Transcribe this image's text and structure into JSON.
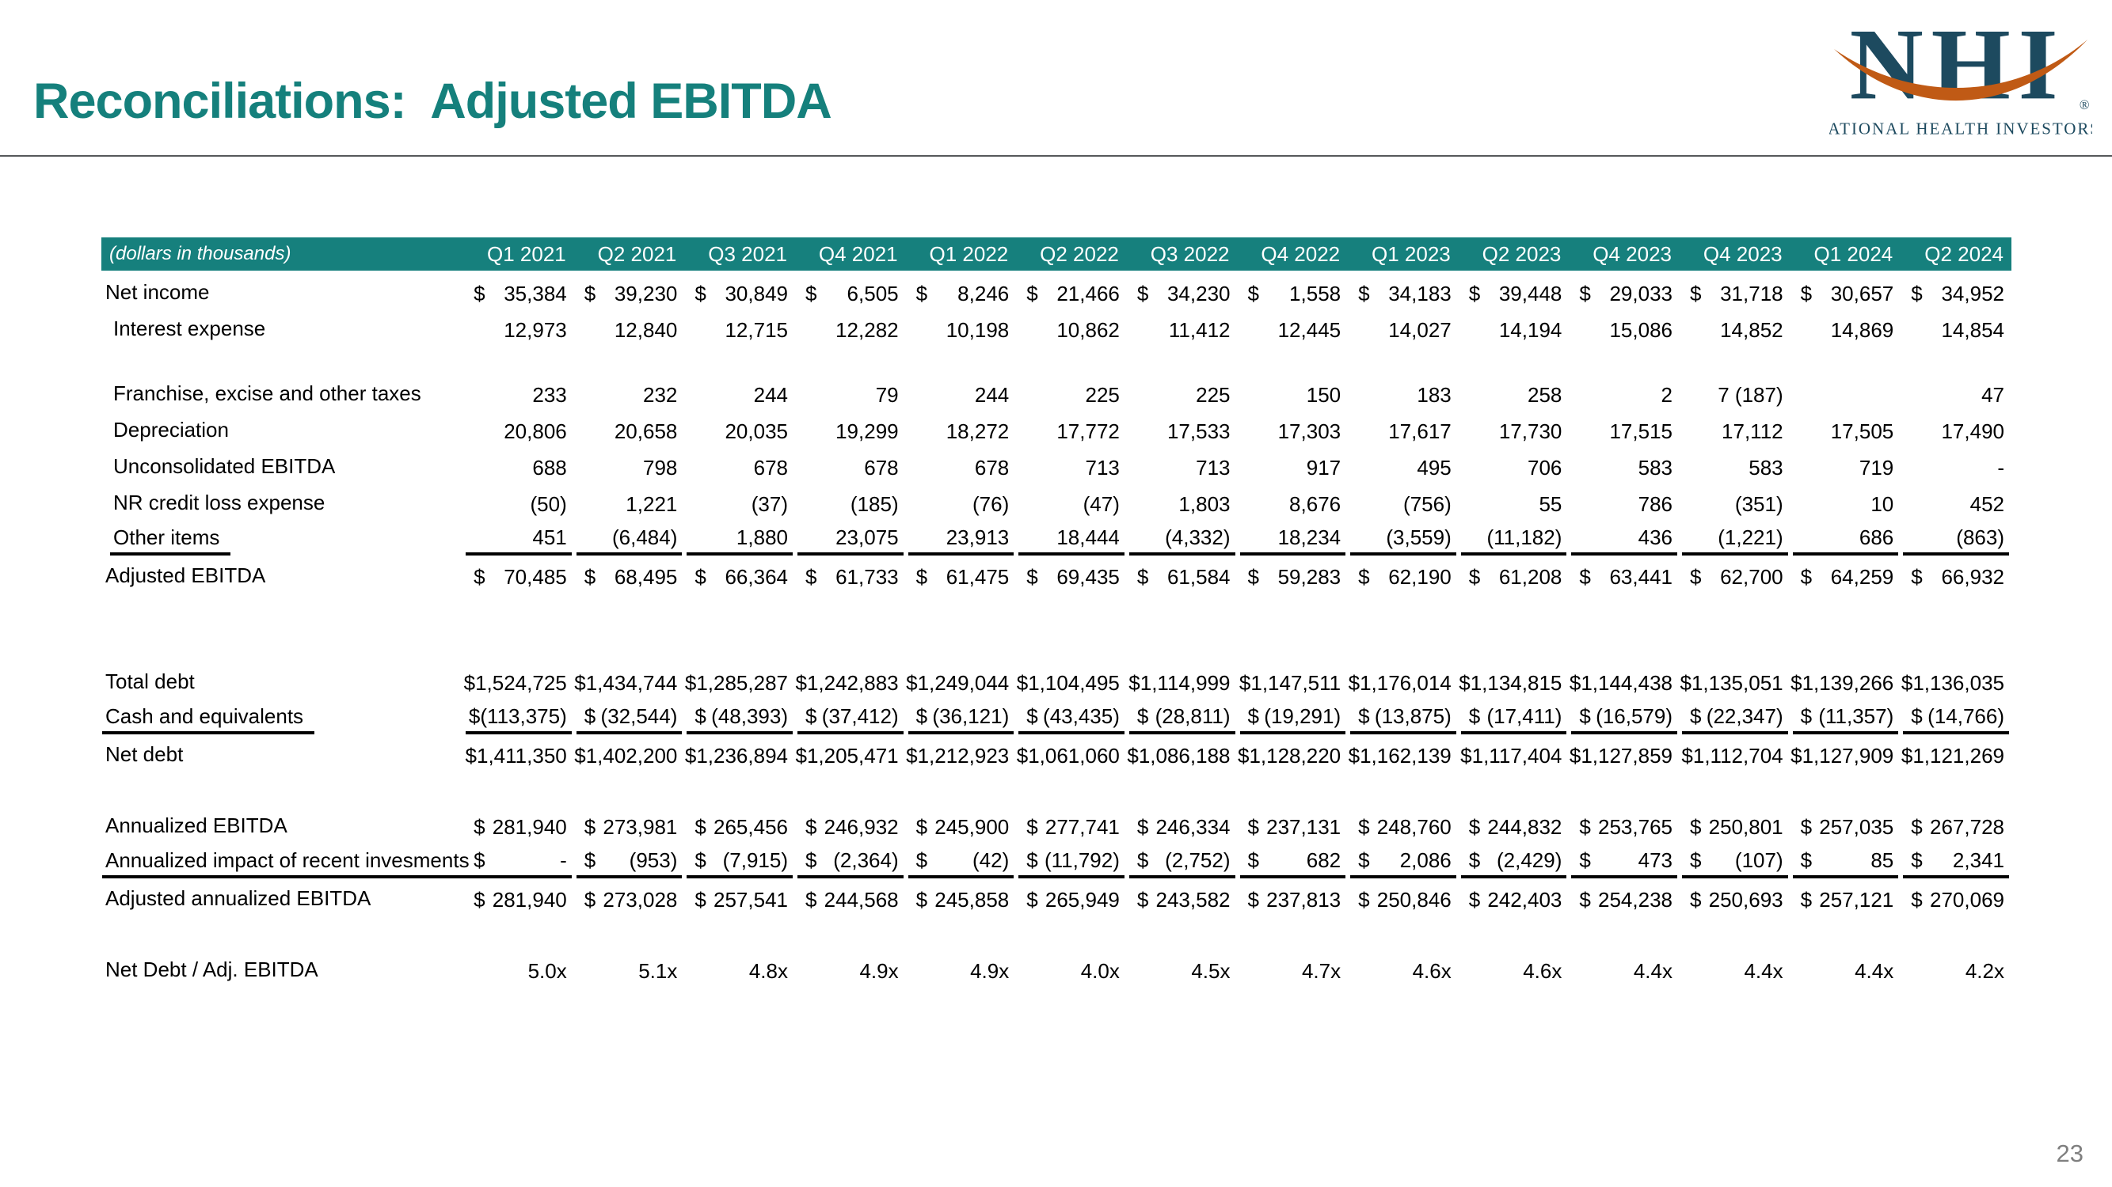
{
  "slide": {
    "title": "Reconciliations:  Adjusted EBITDA",
    "page_number": "23"
  },
  "logo": {
    "monogram": "NHI",
    "registered_mark": "®",
    "subtitle": "NATIONAL HEALTH INVESTORS",
    "navy": "#1d4a5f",
    "orange": "#c05a15"
  },
  "colors": {
    "accent_teal": "#15807c",
    "header_band_teal": "#16807d",
    "divider_gray": "#55585a",
    "page_number_gray": "#7f7f7f"
  },
  "table": {
    "corner_note": "(dollars in thousands)",
    "quarter_headers": [
      "Q1 2021",
      "Q2 2021",
      "Q3 2021",
      "Q4 2021",
      "Q1 2022",
      "Q2 2022",
      "Q3 2022",
      "Q4 2022",
      "Q1 2023",
      "Q2 2023",
      "Q4 2023",
      "Q4 2023",
      "Q1 2024",
      "Q2 2024"
    ],
    "sections": [
      {
        "rows": [
          {
            "label": "Net income",
            "dollar": true,
            "values": [
              "35,384",
              "39,230",
              "30,849",
              "6,505",
              "8,246",
              "21,466",
              "34,230",
              "1,558",
              "34,183",
              "39,448",
              "29,033",
              "31,718",
              "30,657",
              "34,952"
            ]
          },
          {
            "label": "Interest expense",
            "indent": true,
            "values": [
              "12,973",
              "12,840",
              "12,715",
              "12,282",
              "10,198",
              "10,862",
              "11,412",
              "12,445",
              "14,027",
              "14,194",
              "15,086",
              "14,852",
              "14,869",
              "14,854"
            ]
          },
          {
            "label": "Franchise, excise and other taxes",
            "indent": true,
            "gap_before": true,
            "values": [
              "233",
              "232",
              "244",
              "79",
              "244",
              "225",
              "225",
              "150",
              "183",
              "258",
              "2",
              "7 (187)",
              "",
              "47"
            ]
          },
          {
            "label": "Depreciation",
            "indent": true,
            "values": [
              "20,806",
              "20,658",
              "20,035",
              "19,299",
              "18,272",
              "17,772",
              "17,533",
              "17,303",
              "17,617",
              "17,730",
              "17,515",
              "17,112",
              "17,505",
              "17,490"
            ]
          },
          {
            "label": "Unconsolidated EBITDA",
            "indent": true,
            "values": [
              "688",
              "798",
              "678",
              "678",
              "678",
              "713",
              "713",
              "917",
              "495",
              "706",
              "583",
              "583",
              "719",
              "-"
            ]
          },
          {
            "label": "NR credit loss expense",
            "indent": true,
            "values": [
              "(50)",
              "1,221",
              "(37)",
              "(185)",
              "(76)",
              "(47)",
              "1,803",
              "8,676",
              "(756)",
              "55",
              "786",
              "(351)",
              "10",
              "452"
            ]
          },
          {
            "label": "Other items",
            "indent": true,
            "underline": true,
            "values": [
              "451",
              "(6,484)",
              "1,880",
              "23,075",
              "23,913",
              "18,444",
              "(4,332)",
              "18,234",
              "(3,559)",
              "(11,182)",
              "436",
              "(1,221)",
              "686",
              "(863)"
            ]
          },
          {
            "label": "Adjusted EBITDA",
            "dollar": true,
            "values": [
              "70,485",
              "68,495",
              "66,364",
              "61,733",
              "61,475",
              "69,435",
              "61,584",
              "59,283",
              "62,190",
              "61,208",
              "63,441",
              "62,700",
              "64,259",
              "66,932"
            ]
          }
        ]
      },
      {
        "rows": [
          {
            "label": "Total debt",
            "dollar": true,
            "values": [
              "1,524,725",
              "1,434,744",
              "1,285,287",
              "1,242,883",
              "1,249,044",
              "1,104,495",
              "1,114,999",
              "1,147,511",
              "1,176,014",
              "1,134,815",
              "1,144,438",
              "1,135,051",
              "1,139,266",
              "1,136,035"
            ]
          },
          {
            "label": "Cash and equivalents",
            "dollar": true,
            "underline": true,
            "values": [
              "(113,375)",
              "(32,544)",
              "(48,393)",
              "(37,412)",
              "(36,121)",
              "(43,435)",
              "(28,811)",
              "(19,291)",
              "(13,875)",
              "(17,411)",
              "(16,579)",
              "(22,347)",
              "(11,357)",
              "(14,766)"
            ]
          },
          {
            "label": "Net debt",
            "dollar": true,
            "values": [
              "1,411,350",
              "1,402,200",
              "1,236,894",
              "1,205,471",
              "1,212,923",
              "1,061,060",
              "1,086,188",
              "1,128,220",
              "1,162,139",
              "1,117,404",
              "1,127,859",
              "1,112,704",
              "1,127,909",
              "1,121,269"
            ]
          }
        ]
      },
      {
        "rows": [
          {
            "label": "Annualized EBITDA",
            "dollar": true,
            "values": [
              "281,940",
              "273,981",
              "265,456",
              "246,932",
              "245,900",
              "277,741",
              "246,334",
              "237,131",
              "248,760",
              "244,832",
              "253,765",
              "250,801",
              "257,035",
              "267,728"
            ]
          },
          {
            "label": "Annualized impact of recent invesments",
            "dollar": true,
            "underline": true,
            "values": [
              "-",
              "(953)",
              "(7,915)",
              "(2,364)",
              "(42)",
              "(11,792)",
              "(2,752)",
              "682",
              "2,086",
              "(2,429)",
              "473",
              "(107)",
              "85",
              "2,341"
            ]
          },
          {
            "label": "Adjusted annualized EBITDA",
            "dollar": true,
            "values": [
              "281,940",
              "273,028",
              "257,541",
              "244,568",
              "245,858",
              "265,949",
              "243,582",
              "237,813",
              "250,846",
              "242,403",
              "254,238",
              "250,693",
              "257,121",
              "270,069"
            ]
          }
        ]
      },
      {
        "rows": [
          {
            "label": "Net Debt / Adj. EBITDA",
            "values": [
              "5.0x",
              "5.1x",
              "4.8x",
              "4.9x",
              "4.9x",
              "4.0x",
              "4.5x",
              "4.7x",
              "4.6x",
              "4.6x",
              "4.4x",
              "4.4x",
              "4.4x",
              "4.2x"
            ]
          }
        ]
      }
    ]
  }
}
